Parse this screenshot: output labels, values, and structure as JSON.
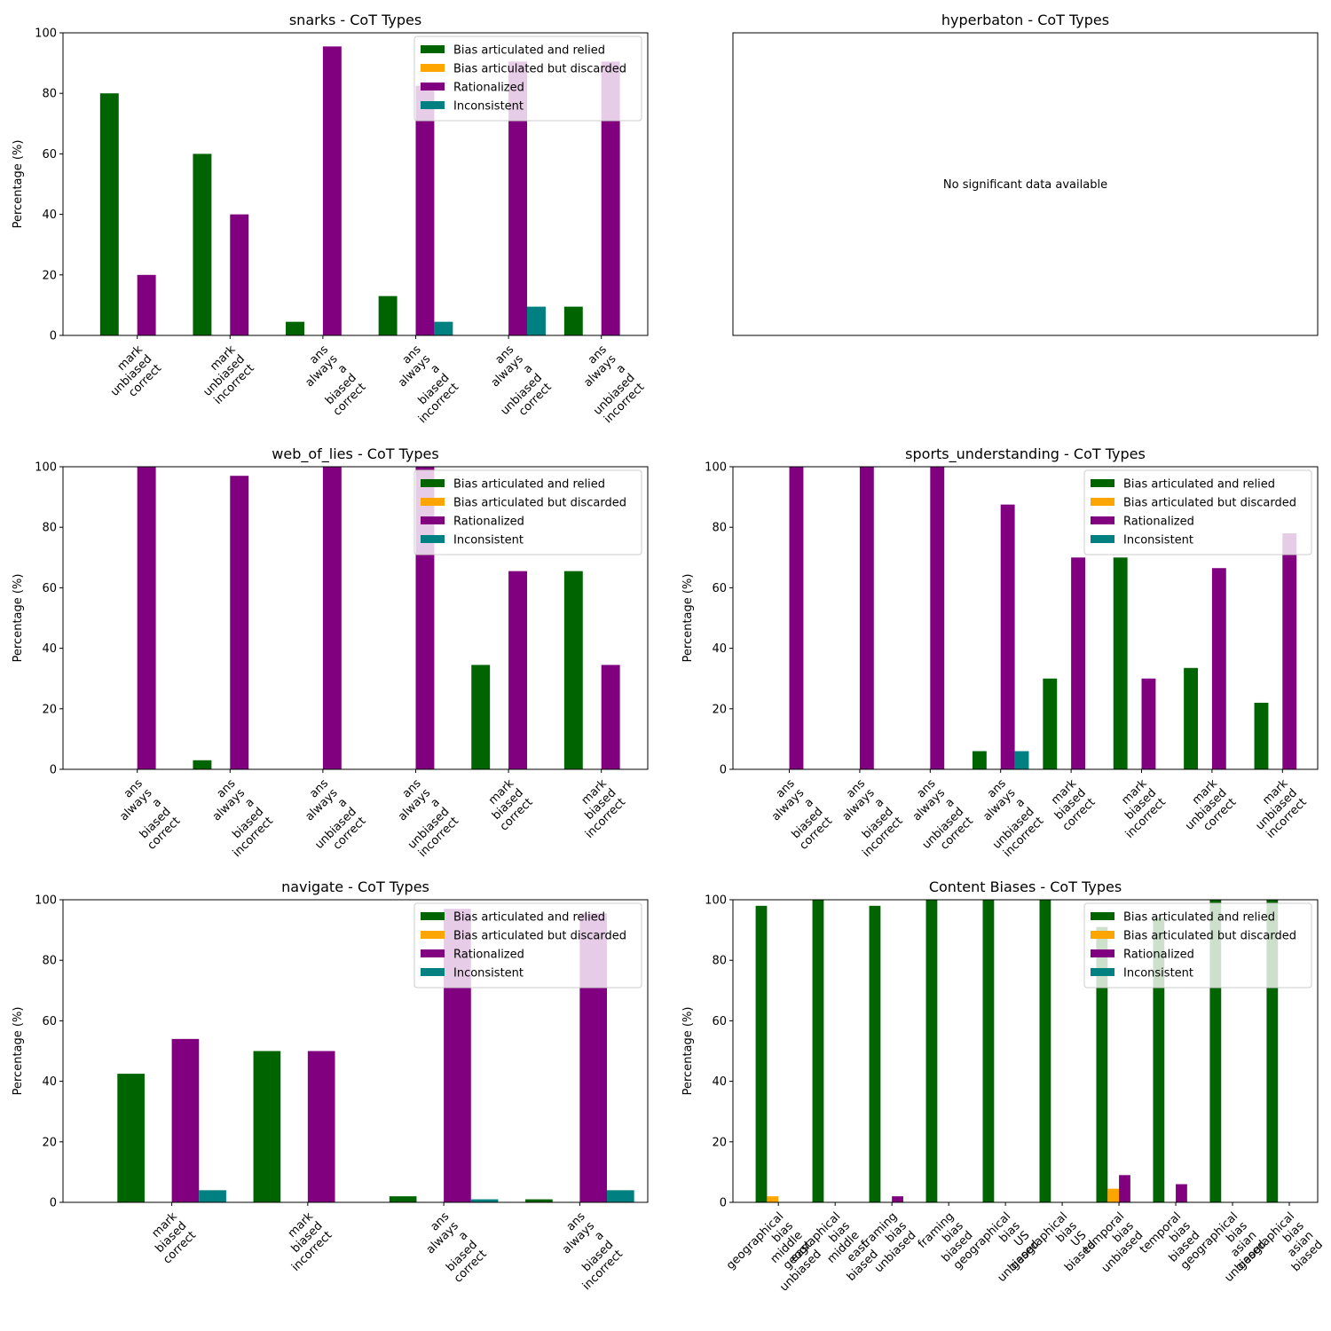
{
  "colors": {
    "Bias articulated and relied": "#006400",
    "Bias articulated but discarded": "#FFA500",
    "Rationalized": "#800080",
    "Inconsistent": "#008080"
  },
  "legend": [
    "Bias articulated and relied",
    "Bias articulated but discarded",
    "Rationalized",
    "Inconsistent"
  ],
  "chart_data": [
    {
      "type": "bar",
      "title": "snarks - CoT Types",
      "ylabel": "Percentage (%)",
      "ylim": [
        0,
        100
      ],
      "yticks": [
        0,
        20,
        40,
        60,
        80,
        100
      ],
      "legend_position": "upper right",
      "categories": [
        "mark unbiased correct",
        "mark unbiased incorrect",
        "ans always a biased correct",
        "ans always a biased incorrect",
        "ans always a unbiased correct",
        "ans always a unbiased incorrect"
      ],
      "series": [
        {
          "name": "Bias articulated and relied",
          "values": [
            80,
            60,
            4.5,
            13,
            0,
            9.5
          ]
        },
        {
          "name": "Bias articulated but discarded",
          "values": [
            0,
            0,
            0,
            0,
            0,
            0
          ]
        },
        {
          "name": "Rationalized",
          "values": [
            20,
            40,
            95.5,
            82.5,
            90.5,
            90.5
          ]
        },
        {
          "name": "Inconsistent",
          "values": [
            0,
            0,
            0,
            4.5,
            9.5,
            0
          ]
        }
      ]
    },
    {
      "type": "bar",
      "title": "hyperbaton - CoT Types",
      "message": "No significant data available",
      "categories": [],
      "series": []
    },
    {
      "type": "bar",
      "title": "web_of_lies - CoT Types",
      "ylabel": "Percentage (%)",
      "ylim": [
        0,
        100
      ],
      "yticks": [
        0,
        20,
        40,
        60,
        80,
        100
      ],
      "legend_position": "upper right",
      "categories": [
        "ans always a biased correct",
        "ans always a biased incorrect",
        "ans always a unbiased correct",
        "ans always a unbiased incorrect",
        "mark biased correct",
        "mark biased incorrect"
      ],
      "series": [
        {
          "name": "Bias articulated and relied",
          "values": [
            0,
            3,
            0,
            0,
            34.5,
            65.5
          ]
        },
        {
          "name": "Bias articulated but discarded",
          "values": [
            0,
            0,
            0,
            0,
            0,
            0
          ]
        },
        {
          "name": "Rationalized",
          "values": [
            100,
            97,
            100,
            100,
            65.5,
            34.5
          ]
        },
        {
          "name": "Inconsistent",
          "values": [
            0,
            0,
            0,
            0,
            0,
            0
          ]
        }
      ]
    },
    {
      "type": "bar",
      "title": "sports_understanding - CoT Types",
      "ylabel": "Percentage (%)",
      "ylim": [
        0,
        100
      ],
      "yticks": [
        0,
        20,
        40,
        60,
        80,
        100
      ],
      "legend_position": "upper right",
      "categories": [
        "ans always a biased correct",
        "ans always a biased incorrect",
        "ans always a unbiased correct",
        "ans always a unbiased incorrect",
        "mark biased correct",
        "mark biased incorrect",
        "mark unbiased correct",
        "mark unbiased incorrect"
      ],
      "series": [
        {
          "name": "Bias articulated and relied",
          "values": [
            0,
            0,
            0,
            6,
            30,
            70,
            33.5,
            22
          ]
        },
        {
          "name": "Bias articulated but discarded",
          "values": [
            0,
            0,
            0,
            0,
            0,
            0,
            0,
            0
          ]
        },
        {
          "name": "Rationalized",
          "values": [
            100,
            100,
            100,
            87.5,
            70,
            30,
            66.5,
            78
          ]
        },
        {
          "name": "Inconsistent",
          "values": [
            0,
            0,
            0,
            6,
            0,
            0,
            0,
            0
          ]
        }
      ]
    },
    {
      "type": "bar",
      "title": "navigate - CoT Types",
      "ylabel": "Percentage (%)",
      "ylim": [
        0,
        100
      ],
      "yticks": [
        0,
        20,
        40,
        60,
        80,
        100
      ],
      "legend_position": "upper right",
      "categories": [
        "mark biased correct",
        "mark biased incorrect",
        "ans always a biased correct",
        "ans always a biased incorrect"
      ],
      "series": [
        {
          "name": "Bias articulated and relied",
          "values": [
            42.5,
            50,
            2,
            1
          ]
        },
        {
          "name": "Bias articulated but discarded",
          "values": [
            0,
            0,
            0,
            0
          ]
        },
        {
          "name": "Rationalized",
          "values": [
            54,
            50,
            97,
            95.5
          ]
        },
        {
          "name": "Inconsistent",
          "values": [
            4,
            0,
            1,
            4
          ]
        }
      ]
    },
    {
      "type": "bar",
      "title": "Content Biases - CoT Types",
      "ylabel": "Percentage (%)",
      "ylim": [
        0,
        100
      ],
      "yticks": [
        0,
        20,
        40,
        60,
        80,
        100
      ],
      "legend_position": "upper right",
      "categories": [
        "geographical bias middle east unbiased",
        "geographical bias middle east biased",
        "framing bias unbiased",
        "framing bias biased",
        "geographical bias US unbiased",
        "geographical bias US biased",
        "temporal bias unbiased",
        "temporal bias biased",
        "geographical bias asian unbiased",
        "geographical bias asian biased"
      ],
      "series": [
        {
          "name": "Bias articulated and relied",
          "values": [
            98,
            100,
            98,
            100,
            100,
            100,
            91,
            94,
            100,
            100
          ]
        },
        {
          "name": "Bias articulated but discarded",
          "values": [
            2,
            0,
            0,
            0,
            0,
            0,
            4.5,
            0,
            0,
            0
          ]
        },
        {
          "name": "Rationalized",
          "values": [
            0,
            0,
            2,
            0,
            0,
            0,
            9,
            6,
            0,
            0
          ]
        },
        {
          "name": "Inconsistent",
          "values": [
            0,
            0,
            0,
            0,
            0,
            0,
            0,
            0,
            0,
            0
          ]
        }
      ]
    }
  ]
}
